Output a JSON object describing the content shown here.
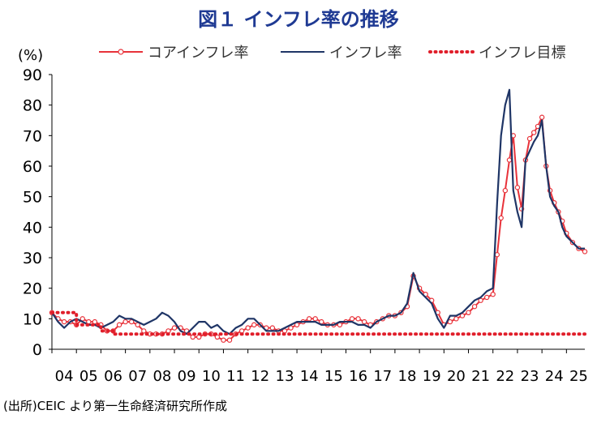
{
  "title": "図１ インフレ率の推移",
  "source": "(出所)CEIC より第一生命経済研究所作成",
  "colors": {
    "core": "#e8323a",
    "headline": "#1f3566",
    "target": "#e01e2a"
  },
  "chart_data": {
    "type": "line",
    "y_unit": "(%)",
    "ylim": [
      0,
      90
    ],
    "y_ticks": [
      0,
      10,
      20,
      30,
      40,
      50,
      60,
      70,
      80,
      90
    ],
    "xlim": [
      2004.0,
      2025.75
    ],
    "x_tick_labels": [
      "04",
      "05",
      "06",
      "07",
      "08",
      "09",
      "10",
      "11",
      "12",
      "13",
      "14",
      "15",
      "16",
      "17",
      "18",
      "19",
      "20",
      "21",
      "22",
      "23",
      "24",
      "25"
    ],
    "grid": false,
    "legend_position": "top",
    "series": [
      {
        "name": "コアインフレ率",
        "style": "line-with-circle-markers",
        "x": [
          2004.0,
          2004.25,
          2004.5,
          2004.75,
          2005.0,
          2005.25,
          2005.5,
          2005.75,
          2006.0,
          2006.25,
          2006.5,
          2006.75,
          2007.0,
          2007.25,
          2007.5,
          2007.75,
          2008.0,
          2008.25,
          2008.5,
          2008.75,
          2009.0,
          2009.25,
          2009.5,
          2009.75,
          2010.0,
          2010.25,
          2010.5,
          2010.75,
          2011.0,
          2011.25,
          2011.5,
          2011.75,
          2012.0,
          2012.25,
          2012.5,
          2012.75,
          2013.0,
          2013.25,
          2013.5,
          2013.75,
          2014.0,
          2014.25,
          2014.5,
          2014.75,
          2015.0,
          2015.25,
          2015.5,
          2015.75,
          2016.0,
          2016.25,
          2016.5,
          2016.75,
          2017.0,
          2017.25,
          2017.5,
          2017.75,
          2018.0,
          2018.25,
          2018.5,
          2018.75,
          2019.0,
          2019.25,
          2019.5,
          2019.75,
          2020.0,
          2020.25,
          2020.5,
          2020.75,
          2021.0,
          2021.25,
          2021.5,
          2021.75,
          2022.0,
          2022.17,
          2022.33,
          2022.5,
          2022.67,
          2022.83,
          2023.0,
          2023.17,
          2023.33,
          2023.5,
          2023.67,
          2023.83,
          2024.0,
          2024.17,
          2024.33,
          2024.5,
          2024.67,
          2024.83,
          2025.0,
          2025.25,
          2025.5,
          2025.75
        ],
        "y": [
          12,
          10,
          9,
          9,
          8,
          10,
          9,
          9,
          8,
          6,
          6,
          8,
          9,
          9,
          8,
          6,
          5,
          5,
          5,
          6,
          7,
          7,
          6,
          4,
          4,
          5,
          5,
          4,
          3,
          3,
          5,
          6,
          7,
          8,
          8,
          7,
          7,
          6,
          6,
          7,
          8,
          9,
          10,
          10,
          9,
          8,
          8,
          8,
          9,
          10,
          10,
          9,
          8,
          9,
          10,
          11,
          11,
          12,
          14,
          24,
          20,
          18,
          16,
          12,
          8,
          9,
          10,
          11,
          12,
          14,
          16,
          17,
          18,
          31,
          43,
          52,
          62,
          70,
          53,
          46,
          62,
          69,
          71,
          73,
          76,
          60,
          52,
          48,
          45,
          42,
          38,
          35,
          33,
          32
        ]
      },
      {
        "name": "インフレ率",
        "style": "line",
        "x": [
          2004.0,
          2004.25,
          2004.5,
          2004.75,
          2005.0,
          2005.25,
          2005.5,
          2005.75,
          2006.0,
          2006.25,
          2006.5,
          2006.75,
          2007.0,
          2007.25,
          2007.5,
          2007.75,
          2008.0,
          2008.25,
          2008.5,
          2008.75,
          2009.0,
          2009.25,
          2009.5,
          2009.75,
          2010.0,
          2010.25,
          2010.5,
          2010.75,
          2011.0,
          2011.25,
          2011.5,
          2011.75,
          2012.0,
          2012.25,
          2012.5,
          2012.75,
          2013.0,
          2013.25,
          2013.5,
          2013.75,
          2014.0,
          2014.25,
          2014.5,
          2014.75,
          2015.0,
          2015.25,
          2015.5,
          2015.75,
          2016.0,
          2016.25,
          2016.5,
          2016.75,
          2017.0,
          2017.25,
          2017.5,
          2017.75,
          2018.0,
          2018.25,
          2018.5,
          2018.75,
          2019.0,
          2019.25,
          2019.5,
          2019.75,
          2020.0,
          2020.25,
          2020.5,
          2020.75,
          2021.0,
          2021.25,
          2021.5,
          2021.75,
          2022.0,
          2022.17,
          2022.33,
          2022.5,
          2022.67,
          2022.83,
          2023.0,
          2023.17,
          2023.33,
          2023.5,
          2023.67,
          2023.83,
          2024.0,
          2024.17,
          2024.33,
          2024.5,
          2024.67,
          2024.83,
          2025.0,
          2025.25,
          2025.5,
          2025.75
        ],
        "y": [
          12,
          9,
          7,
          9,
          10,
          9,
          8,
          8,
          7,
          8,
          9,
          11,
          10,
          10,
          9,
          8,
          9,
          10,
          12,
          11,
          9,
          6,
          5,
          7,
          9,
          9,
          7,
          8,
          6,
          5,
          7,
          8,
          10,
          10,
          8,
          6,
          6,
          6,
          7,
          8,
          9,
          9,
          9,
          9,
          8,
          8,
          8,
          9,
          9,
          9,
          8,
          8,
          7,
          9,
          10,
          11,
          11,
          12,
          15,
          25,
          19,
          17,
          15,
          10,
          7,
          11,
          11,
          12,
          14,
          16,
          17,
          19,
          20,
          48,
          70,
          80,
          85,
          52,
          45,
          40,
          62,
          65,
          68,
          70,
          75,
          60,
          50,
          47,
          45,
          40,
          37,
          35,
          33,
          33
        ]
      },
      {
        "name": "インフレ目標",
        "style": "dotted",
        "x": [
          2004.0,
          2005.0,
          2005.0,
          2006.0,
          2006.0,
          2006.5,
          2006.5,
          2025.75
        ],
        "y": [
          12,
          12,
          8,
          8,
          6,
          6,
          5,
          5
        ]
      }
    ]
  }
}
